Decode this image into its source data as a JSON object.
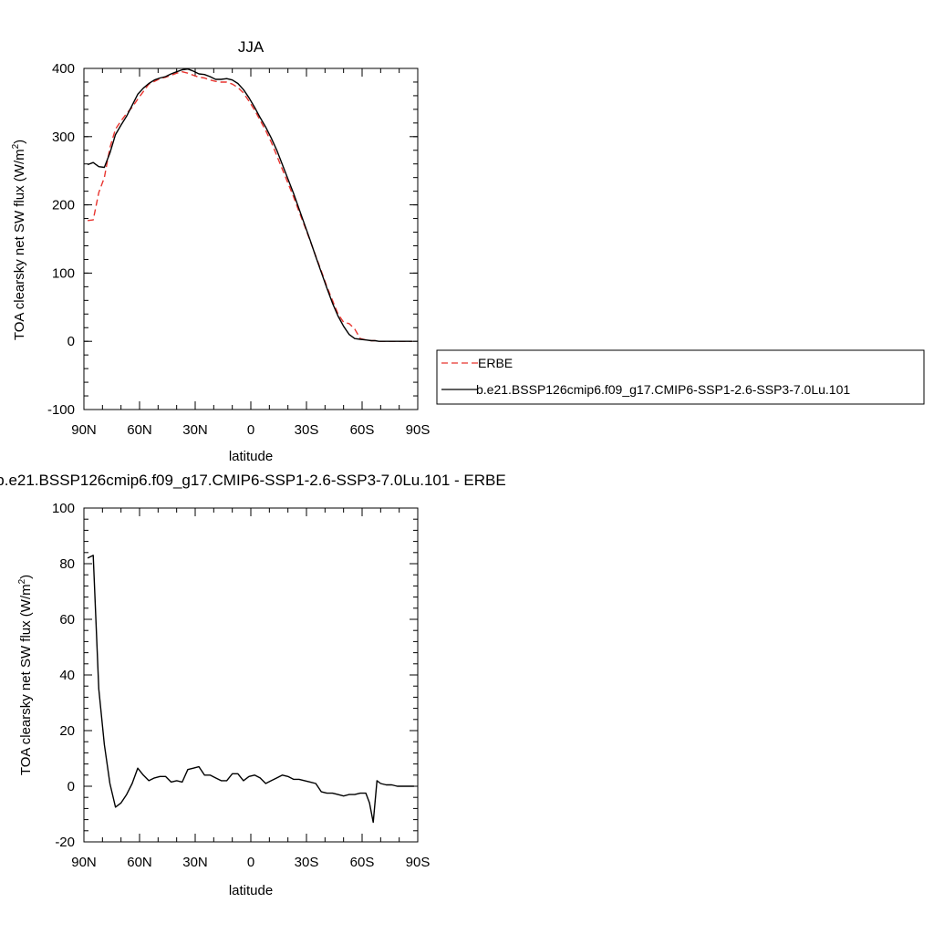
{
  "chart_data": [
    {
      "type": "line",
      "title": "JJA",
      "xlabel": "latitude",
      "ylabel": "TOA clearsky net SW flux (W/m",
      "ylabel_sup": "2",
      "ylabel_close": ")",
      "xlim": [
        90,
        -90
      ],
      "ylim": [
        -100,
        400
      ],
      "x_ticks": [
        90,
        60,
        30,
        0,
        -30,
        -60,
        -90
      ],
      "x_tick_labels": [
        "90N",
        "60N",
        "30N",
        "0",
        "30S",
        "60S",
        "90S"
      ],
      "y_ticks": [
        -100,
        0,
        100,
        200,
        300,
        400
      ],
      "y_tick_labels": [
        "-100",
        "0",
        "100",
        "200",
        "300",
        "400"
      ],
      "legend": "outside-right",
      "series": [
        {
          "name": "ERBE",
          "color": "#e8342f",
          "dash": "dashed",
          "x": [
            88,
            85,
            82,
            79,
            76,
            73,
            70,
            67,
            64,
            61,
            58,
            55,
            52,
            49,
            46,
            43,
            40,
            37,
            34,
            31,
            28,
            25,
            22,
            19,
            16,
            13,
            10,
            7,
            4,
            1,
            -2,
            -5,
            -8,
            -11,
            -14,
            -17,
            -20,
            -23,
            -26,
            -29,
            -32,
            -35,
            -38,
            -41,
            -44,
            -47,
            -50,
            -53,
            -56,
            -59,
            -62,
            -65,
            -67,
            -69,
            -72,
            -75,
            -78,
            -81,
            -84,
            -87
          ],
          "y": [
            177,
            178,
            218,
            240,
            284,
            311,
            323,
            334,
            343,
            355,
            366,
            377,
            381,
            385,
            387,
            390,
            393,
            395,
            393,
            390,
            387,
            386,
            383,
            381,
            380,
            380,
            377,
            372,
            364,
            352,
            339,
            324,
            309,
            292,
            272,
            252,
            232,
            212,
            190,
            169,
            147,
            125,
            103,
            80,
            60,
            40,
            28,
            26,
            18,
            4,
            2,
            1,
            1,
            0,
            0,
            0,
            0,
            0,
            0,
            0
          ]
        },
        {
          "name": "b.e21.BSSP126cmip6.f09_g17.CMIP6-SSP1-2.6-SSP3-7.0Lu.101",
          "color": "#000000",
          "dash": "solid",
          "x": [
            88,
            85,
            82,
            79,
            76,
            73,
            70,
            67,
            64,
            61,
            58,
            55,
            52,
            49,
            46,
            43,
            40,
            37,
            34,
            31,
            28,
            25,
            22,
            19,
            16,
            13,
            10,
            7,
            4,
            1,
            -2,
            -5,
            -8,
            -11,
            -14,
            -17,
            -20,
            -23,
            -26,
            -29,
            -32,
            -35,
            -38,
            -41,
            -44,
            -47,
            -50,
            -53,
            -56,
            -59,
            -62,
            -65,
            -67,
            -69,
            -72,
            -75,
            -78,
            -81,
            -84,
            -87
          ],
          "y": [
            259,
            262,
            256,
            255,
            276,
            303,
            317,
            330,
            346,
            362,
            371,
            378,
            383,
            386,
            388,
            392,
            395,
            398,
            399,
            396,
            392,
            391,
            388,
            384,
            384,
            385,
            383,
            378,
            369,
            357,
            343,
            328,
            314,
            298,
            280,
            259,
            238,
            217,
            194,
            171,
            148,
            124,
            101,
            78,
            56,
            37,
            22,
            10,
            4,
            3,
            2,
            1,
            1,
            0,
            0,
            0,
            0,
            0,
            0,
            0
          ]
        }
      ]
    },
    {
      "type": "line",
      "title": "b.e21.BSSP126cmip6.f09_g17.CMIP6-SSP1-2.6-SSP3-7.0Lu.101 - ERBE",
      "xlabel": "latitude",
      "ylabel": "TOA clearsky net SW flux (W/m",
      "ylabel_sup": "2",
      "ylabel_close": ")",
      "xlim": [
        90,
        -90
      ],
      "ylim": [
        -20,
        100
      ],
      "x_ticks": [
        90,
        60,
        30,
        0,
        -30,
        -60,
        -90
      ],
      "x_tick_labels": [
        "90N",
        "60N",
        "30N",
        "0",
        "30S",
        "60S",
        "90S"
      ],
      "y_ticks": [
        -20,
        0,
        20,
        40,
        60,
        80,
        100
      ],
      "y_tick_labels": [
        "-20",
        "0",
        "20",
        "40",
        "60",
        "80",
        "100"
      ],
      "series": [
        {
          "color": "#000000",
          "dash": "solid",
          "x": [
            88,
            85,
            82,
            79,
            76,
            73,
            70,
            67,
            64,
            61,
            58,
            55,
            52,
            49,
            46,
            43,
            40,
            37,
            34,
            31,
            28,
            25,
            22,
            19,
            16,
            13,
            10,
            7,
            4,
            1,
            -2,
            -5,
            -8,
            -11,
            -14,
            -17,
            -20,
            -23,
            -26,
            -29,
            -32,
            -35,
            -38,
            -41,
            -44,
            -47,
            -50,
            -53,
            -56,
            -59,
            -62,
            -64,
            -66,
            -68,
            -70,
            -73,
            -76,
            -79,
            -82,
            -85,
            -88
          ],
          "y": [
            82,
            83,
            35,
            15,
            1,
            -7.5,
            -6,
            -3,
            1,
            6.5,
            4,
            2,
            3,
            3.5,
            3.5,
            1.5,
            2,
            1.5,
            6,
            6.5,
            7,
            4,
            4,
            3,
            2,
            2,
            4.5,
            4.5,
            2,
            3.5,
            4,
            3,
            1,
            2,
            3,
            4,
            3.5,
            2.5,
            2.5,
            2,
            1.5,
            1,
            -2,
            -2.5,
            -2.5,
            -3,
            -3.5,
            -3,
            -3,
            -2.5,
            -2.5,
            -6,
            -13,
            2,
            1,
            0.5,
            0.5,
            0,
            0,
            0,
            0
          ]
        }
      ]
    }
  ]
}
